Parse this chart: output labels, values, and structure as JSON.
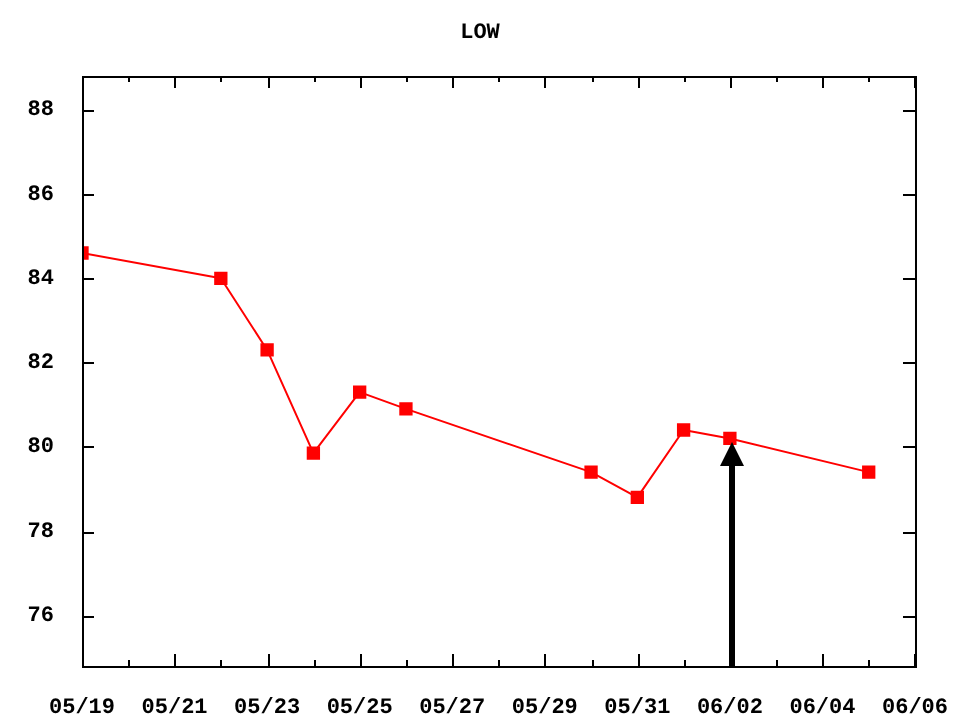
{
  "chart_data": {
    "type": "line",
    "title": "LOW",
    "x": [
      "--05-19",
      "--05-22",
      "--05-23",
      "--05-24",
      "--05-25",
      "--05-26",
      "--05-30",
      "--05-31",
      "--06-01",
      "--06-02",
      "--06-05"
    ],
    "series": [
      {
        "color": "#ff0000",
        "values": [
          84.6,
          84.0,
          82.3,
          79.85,
          81.3,
          80.9,
          79.4,
          78.8,
          80.4,
          80.2,
          79.4
        ]
      }
    ],
    "xlim": [
      "--05-19",
      "--06-06"
    ],
    "xticks": [
      {
        "value": "--05-19",
        "label": "05/19"
      },
      {
        "value": "--05-20",
        "label": null
      },
      {
        "value": "--05-21",
        "label": "05/21"
      },
      {
        "value": "--05-22",
        "label": null
      },
      {
        "value": "--05-23",
        "label": "05/23"
      },
      {
        "value": "--05-24",
        "label": null
      },
      {
        "value": "--05-25",
        "label": "05/25"
      },
      {
        "value": "--05-26",
        "label": null
      },
      {
        "value": "--05-27",
        "label": "05/27"
      },
      {
        "value": "--05-28",
        "label": null
      },
      {
        "value": "--05-29",
        "label": "05/29"
      },
      {
        "value": "--05-30",
        "label": null
      },
      {
        "value": "--05-31",
        "label": "05/31"
      },
      {
        "value": "--06-01",
        "label": null
      },
      {
        "value": "--06-02",
        "label": "06/02"
      },
      {
        "value": "--06-03",
        "label": null
      },
      {
        "value": "--06-04",
        "label": "06/04"
      },
      {
        "value": "--06-05",
        "label": null
      },
      {
        "value": "--06-06",
        "label": "06/06"
      }
    ],
    "ylim": [
      74.8,
      88.8
    ],
    "yticks": [
      76,
      78,
      80,
      82,
      84,
      86,
      88
    ],
    "grid": false,
    "legend": false,
    "marker": "square",
    "line_style": "solid"
  }
}
